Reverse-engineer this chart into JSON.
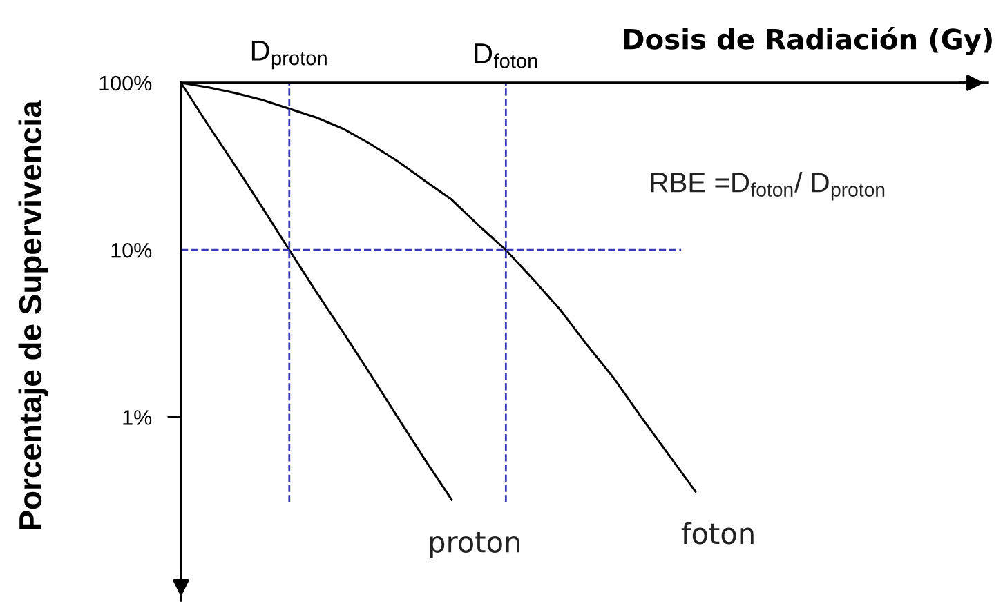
{
  "chart_data": {
    "type": "line",
    "xlabel": "Dosis de Radiación (Gy)",
    "ylabel": "Porcentaje de Supervivencia",
    "categories": [
      null,
      null,
      null,
      null,
      "D$_{proton}$",
      null,
      null,
      null,
      null,
      null,
      null,
      null,
      "D$_{foton}$",
      null,
      null,
      null,
      null,
      null,
      null,
      null,
      null,
      null,
      null,
      null,
      null,
      null,
      null,
      null,
      null,
      null
    ],
    "series": [
      {
        "name": "proton",
        "color": "#000000",
        "values": [
          100,
          56,
          32,
          18,
          10,
          5.6,
          3.2,
          1.8,
          1.0,
          0.56,
          0.32,
          null,
          null,
          null,
          null,
          null,
          null,
          null,
          null,
          null,
          null,
          null,
          null,
          null,
          null,
          null,
          null,
          null,
          null,
          null
        ]
      },
      {
        "name": "foton",
        "color": "#000000",
        "values": [
          100,
          94,
          87,
          79,
          70,
          62,
          53,
          43,
          34,
          26,
          20,
          14,
          10,
          6.7,
          4.4,
          2.7,
          1.7,
          1.0,
          0.6,
          0.36,
          null,
          null,
          null,
          null,
          null,
          null,
          null,
          null,
          null,
          null
        ]
      }
    ],
    "ylim": [
      0.08,
      100
    ],
    "yticks": [
      {
        "value": 100,
        "label": "100%"
      },
      {
        "value": 10,
        "label": "10%"
      },
      {
        "value": 1,
        "label": "1%"
      }
    ],
    "log": "y",
    "grid": false,
    "legend": false,
    "marker": "none",
    "line_style": "solid",
    "ref_lines": [
      {
        "axis": "x",
        "value": "D$_{proton}$",
        "color": "#3a3ab8",
        "line_style": "dashed"
      },
      {
        "axis": "x",
        "value": "D$_{foton}$",
        "color": "#3a3ab8",
        "line_style": "dashed"
      },
      {
        "axis": "y",
        "value": 10,
        "color": "#3a3ab8",
        "line_style": "dashed"
      }
    ],
    "annotations": [
      "RBE =D$_{foton}$/ D$_{proton}$"
    ]
  }
}
